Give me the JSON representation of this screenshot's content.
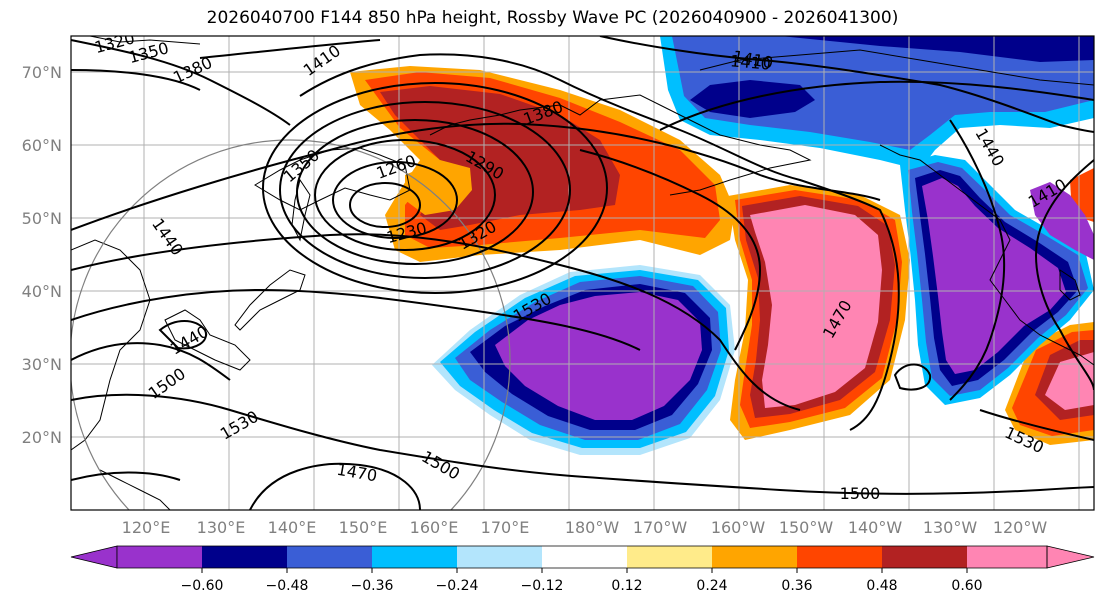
{
  "title": "2026040700 F144 850 hPa height, Rossby Wave PC (2026040900 - 2026041300)",
  "colors": {
    "bins": [
      "#9932cc",
      "#00008b",
      "#3a5ed6",
      "#00bfff",
      "#b3e5fc",
      "#ffffff",
      "#ffeb8a",
      "#ffa500",
      "#ff4500",
      "#b22222",
      "#ff85b3"
    ],
    "contour": "#000000",
    "grid": "#b0b0b0",
    "coast": "#000000",
    "tick_text": "#808080"
  },
  "axes": {
    "lat_labels": [
      "70°N",
      "60°N",
      "50°N",
      "40°N",
      "30°N",
      "20°N"
    ],
    "lon_labels": [
      "120°E",
      "130°E",
      "140°E",
      "150°E",
      "160°E",
      "170°E",
      "180°W",
      "170°W",
      "160°W",
      "150°W",
      "140°W",
      "130°W",
      "120°W"
    ]
  },
  "contour_labels": [
    "1320",
    "1350",
    "1380",
    "1410",
    "1410",
    "1380",
    "1350",
    "1260",
    "1290",
    "1320",
    "1230",
    "1440",
    "1530",
    "1440",
    "1500",
    "1530",
    "1470",
    "1500",
    "1500",
    "1470",
    "1410",
    "1440",
    "1410",
    "1530"
  ],
  "colorbar": {
    "ticks": [
      "−0.60",
      "−0.48",
      "−0.36",
      "−0.24",
      "−0.12",
      "0.12",
      "0.24",
      "0.36",
      "0.48",
      "0.60"
    ]
  }
}
